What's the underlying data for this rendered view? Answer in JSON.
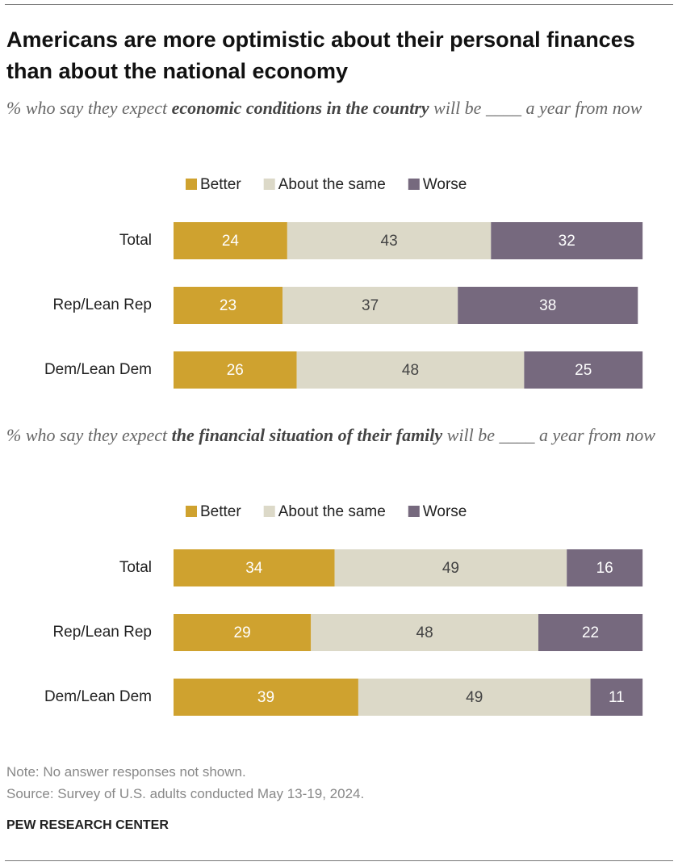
{
  "title": "Americans are more optimistic about their personal finances than about the national economy",
  "chart_data": [
    {
      "type": "stacked-bar",
      "subtitle": [
        "% who say they expect ",
        "economic conditions in the country",
        " will be ____ a year from now"
      ],
      "categories": [
        "Total",
        "Rep/Lean Rep",
        "Dem/Lean Dem"
      ],
      "xlim": [
        0,
        100
      ],
      "series": [
        {
          "name": "Better",
          "color": "#cfa22f",
          "values": [
            24,
            23,
            26
          ]
        },
        {
          "name": "About the same",
          "color": "#dcd9c8",
          "values": [
            43,
            37,
            48
          ]
        },
        {
          "name": "Worse",
          "color": "#76697e",
          "values": [
            32,
            38,
            25
          ]
        }
      ]
    },
    {
      "type": "stacked-bar",
      "subtitle": [
        "% who say they expect ",
        "the financial situation of their family",
        " will be ____ a year from now"
      ],
      "categories": [
        "Total",
        "Rep/Lean Rep",
        "Dem/Lean Dem"
      ],
      "xlim": [
        0,
        100
      ],
      "series": [
        {
          "name": "Better",
          "color": "#cfa22f",
          "values": [
            34,
            29,
            39
          ]
        },
        {
          "name": "About the same",
          "color": "#dcd9c8",
          "values": [
            49,
            48,
            49
          ]
        },
        {
          "name": "Worse",
          "color": "#76697e",
          "values": [
            16,
            22,
            11
          ]
        }
      ]
    }
  ],
  "note": "Note: No answer responses not shown.",
  "source": "Source: Survey of U.S. adults conducted May 13-19, 2024.",
  "credit": "PEW RESEARCH CENTER"
}
